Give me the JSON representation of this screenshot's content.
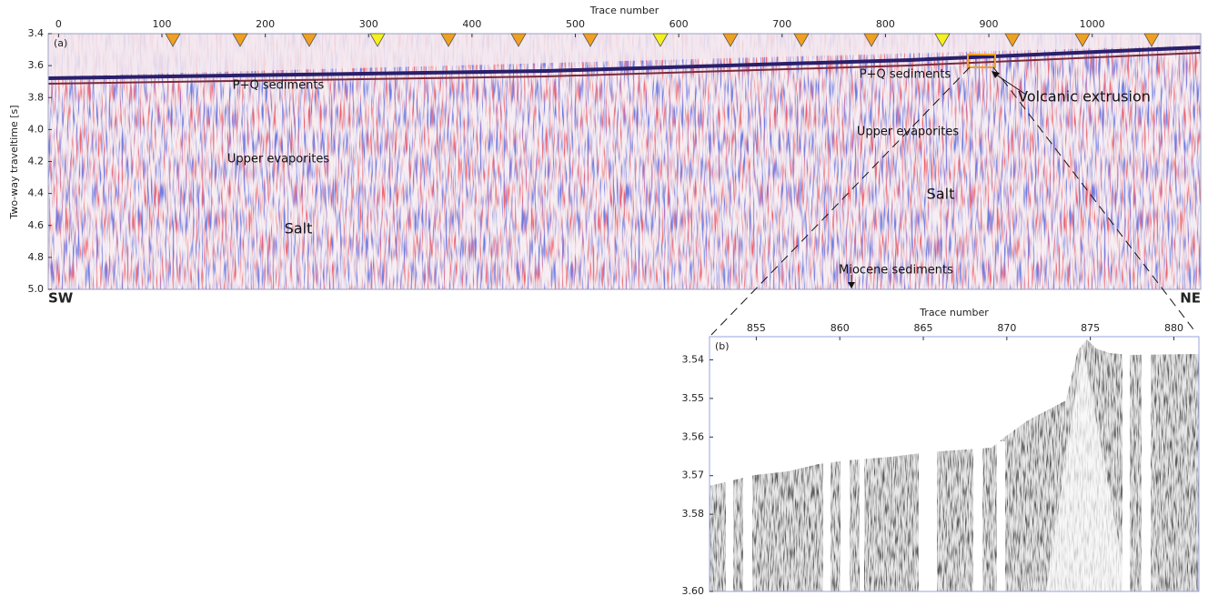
{
  "panel_a": {
    "label": "(a)",
    "x_axis_label": "Trace number",
    "y_axis_label": "Two-way traveltime [s]",
    "xlim": [
      -10,
      1105
    ],
    "xticks": [
      0,
      100,
      200,
      300,
      400,
      500,
      600,
      700,
      800,
      900,
      1000
    ],
    "ylim": [
      3.4,
      5.0
    ],
    "yticks": [
      3.4,
      3.6,
      3.8,
      {
        "value": 4,
        "label": "4.0"
      },
      4.2,
      4.4,
      4.6,
      4.8,
      {
        "value": 5,
        "label": "5.0"
      }
    ],
    "annotations": [
      "P+Q sediments",
      "Upper evaporites",
      "Salt",
      "P+Q sediments",
      "Upper evaporites",
      "Salt",
      "Volcanic extrusion",
      "Miocene sediments"
    ],
    "directions": [
      "SW",
      "NE"
    ]
  },
  "panel_b": {
    "label": "(b)",
    "x_axis_label": "Trace number",
    "xlim": [
      852.2,
      881.5
    ],
    "xticks": [
      855,
      860,
      865,
      870,
      875,
      880
    ],
    "ylim": [
      3.534,
      3.6
    ],
    "yticks": [
      3.54,
      3.55,
      3.56,
      3.57,
      3.58,
      {
        "value": 3.6,
        "label": "3.60"
      }
    ]
  }
}
